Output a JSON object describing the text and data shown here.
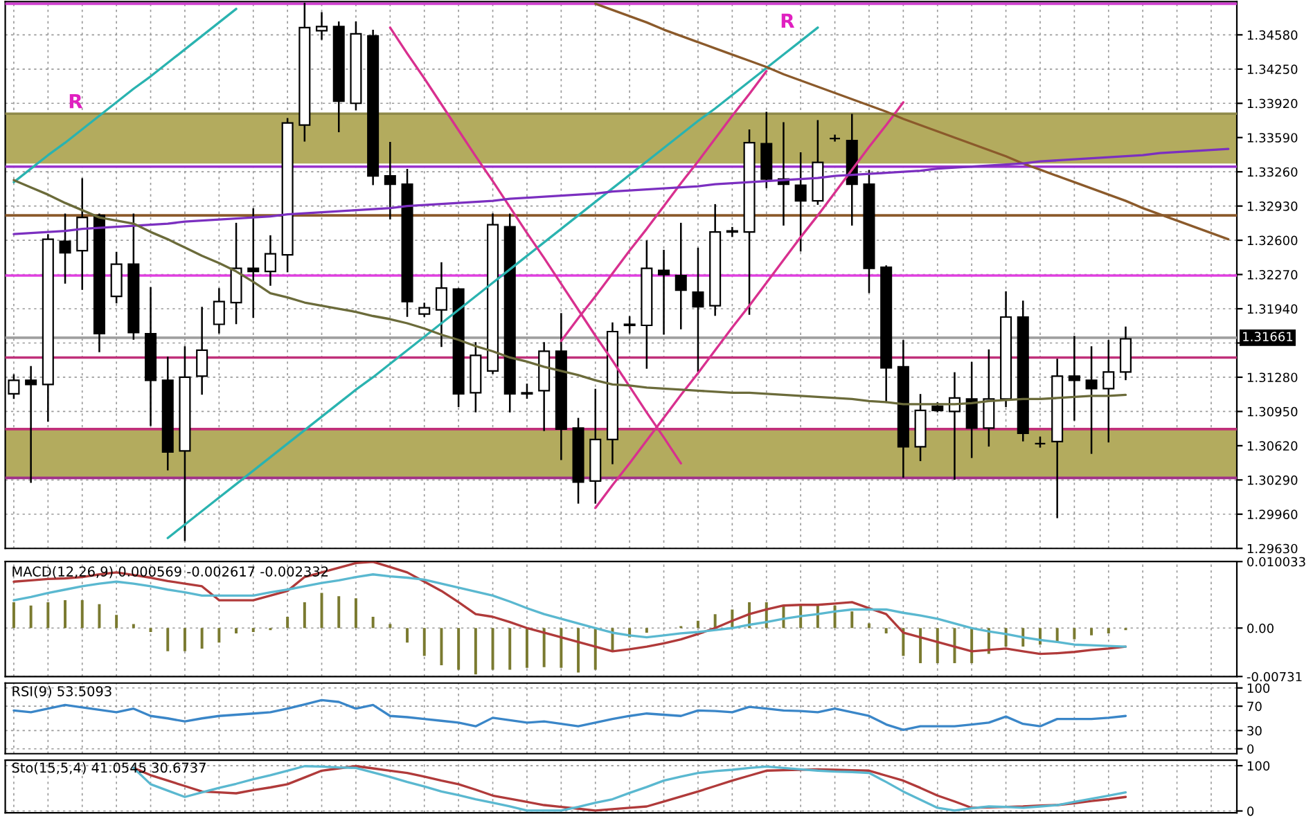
{
  "chart_data": [
    {
      "type": "candlestick",
      "categories": [
        null,
        null,
        null,
        null,
        null,
        null,
        null,
        null,
        null,
        null,
        null,
        null,
        null,
        null,
        null,
        null,
        null,
        null,
        null,
        null,
        null,
        null,
        null,
        null,
        null,
        null,
        null,
        null,
        null,
        null,
        null,
        null,
        null,
        null,
        null,
        null,
        null,
        null,
        null,
        null,
        null,
        null,
        null,
        null,
        null,
        null,
        null,
        null,
        null,
        null,
        null,
        null,
        null,
        null,
        null,
        null,
        null,
        null,
        null,
        null,
        null,
        null,
        null,
        null,
        null,
        null,
        null,
        null,
        null,
        null,
        null,
        null
      ],
      "ohlc": [
        [
          1.3112,
          1.313,
          1.3108,
          1.3125
        ],
        [
          1.3125,
          1.3138,
          1.3027,
          1.3121
        ],
        [
          1.3121,
          1.3265,
          1.3086,
          1.3261
        ],
        [
          1.3259,
          1.3285,
          1.3219,
          1.3248
        ],
        [
          1.325,
          1.3319,
          1.3213,
          1.3282
        ],
        [
          1.3284,
          1.3285,
          1.3153,
          1.317
        ],
        [
          1.3206,
          1.3248,
          1.32,
          1.3237
        ],
        [
          1.3237,
          1.3285,
          1.3165,
          1.3171
        ],
        [
          1.317,
          1.3214,
          1.3082,
          1.3125
        ],
        [
          1.3125,
          1.3147,
          1.3039,
          1.3056
        ],
        [
          1.3057,
          1.3157,
          1.2971,
          1.3128
        ],
        [
          1.3129,
          1.3195,
          1.3112,
          1.3154
        ],
        [
          1.3179,
          1.3213,
          1.3171,
          1.3201
        ],
        [
          1.32,
          1.3276,
          1.318,
          1.3233
        ],
        [
          1.3233,
          1.329,
          1.3186,
          1.323
        ],
        [
          1.323,
          1.3264,
          1.3217,
          1.3247
        ],
        [
          1.3246,
          1.3377,
          1.323,
          1.3373
        ],
        [
          1.3371,
          1.3488,
          1.3356,
          1.3465
        ],
        [
          1.3462,
          1.3479,
          1.3454,
          1.3466
        ],
        [
          1.3466,
          1.347,
          1.3365,
          1.3394
        ],
        [
          1.3392,
          1.347,
          1.3386,
          1.3459
        ],
        [
          1.3457,
          1.3462,
          1.3314,
          1.3322
        ],
        [
          1.3322,
          1.3354,
          1.3281,
          1.3314
        ],
        [
          1.3314,
          1.3328,
          1.3187,
          1.3201
        ],
        [
          1.3189,
          1.3199,
          1.3187,
          1.3195
        ],
        [
          1.3193,
          1.3238,
          1.3158,
          1.3214
        ],
        [
          1.3213,
          1.3213,
          1.31,
          1.3112
        ],
        [
          1.3113,
          1.3161,
          1.3095,
          1.3149
        ],
        [
          1.3134,
          1.3285,
          1.3132,
          1.3275
        ],
        [
          1.3273,
          1.3285,
          1.3095,
          1.3112
        ],
        [
          1.3113,
          1.3121,
          1.3108,
          1.3112
        ],
        [
          1.3115,
          1.3161,
          1.3077,
          1.3153
        ],
        [
          1.3153,
          1.3189,
          1.3049,
          1.3078
        ],
        [
          1.3079,
          1.3088,
          1.3007,
          1.3027
        ],
        [
          1.3028,
          1.3116,
          1.3007,
          1.3068
        ],
        [
          1.3068,
          1.318,
          1.3045,
          1.3172
        ],
        [
          1.3178,
          1.3186,
          1.3171,
          1.3179
        ],
        [
          1.3178,
          1.3259,
          1.3137,
          1.3233
        ],
        [
          1.3231,
          1.325,
          1.317,
          1.3227
        ],
        [
          1.3226,
          1.3276,
          1.3175,
          1.3212
        ],
        [
          1.321,
          1.3252,
          1.3134,
          1.3196
        ],
        [
          1.3197,
          1.3294,
          1.3188,
          1.3268
        ],
        [
          1.3268,
          1.3272,
          1.3264,
          1.3269
        ],
        [
          1.3268,
          1.3366,
          1.3189,
          1.3354
        ],
        [
          1.3353,
          1.3383,
          1.3311,
          1.3319
        ],
        [
          1.3319,
          1.3373,
          1.3275,
          1.3314
        ],
        [
          1.3313,
          1.3344,
          1.325,
          1.3298
        ],
        [
          1.3298,
          1.3375,
          1.3295,
          1.3335
        ],
        [
          1.3358,
          1.3361,
          1.3356,
          1.3358
        ],
        [
          1.3356,
          1.3381,
          1.3275,
          1.3314
        ],
        [
          1.3314,
          1.3327,
          1.321,
          1.3233
        ],
        [
          1.3234,
          1.3235,
          1.3104,
          1.3137
        ],
        [
          1.3138,
          1.3163,
          1.3032,
          1.3061
        ],
        [
          1.3061,
          1.3111,
          1.3048,
          1.3096
        ],
        [
          1.31,
          1.3103,
          1.3095,
          1.3096
        ],
        [
          1.3095,
          1.3132,
          1.303,
          1.3108
        ],
        [
          1.3107,
          1.3142,
          1.3051,
          1.3079
        ],
        [
          1.3079,
          1.3154,
          1.3062,
          1.3107
        ],
        [
          1.3107,
          1.321,
          1.31,
          1.3186
        ],
        [
          1.3186,
          1.3201,
          1.3067,
          1.3074
        ],
        [
          1.3064,
          1.307,
          1.3061,
          1.3064
        ],
        [
          1.3066,
          1.3145,
          1.2993,
          1.3129
        ],
        [
          1.3129,
          1.3167,
          1.3087,
          1.3125
        ],
        [
          1.3125,
          1.3157,
          1.3055,
          1.3117
        ],
        [
          1.3117,
          1.3163,
          1.3066,
          1.3133
        ],
        [
          1.3133,
          1.3176,
          1.3126,
          1.3165
        ],
        null,
        null,
        null,
        null,
        null,
        null
      ],
      "series": [
        {
          "type": "line",
          "color": "#2ab3b0",
          "values": [
            1.3316,
            1.3329,
            1.3342,
            1.3354,
            1.3367,
            1.338,
            1.3393,
            1.3406,
            1.3418,
            1.3431,
            1.3444,
            1.3457,
            1.347,
            1.3483,
            null,
            null,
            null,
            null,
            null,
            null,
            null,
            null,
            null,
            null,
            null,
            null,
            null,
            null,
            null,
            null,
            null,
            null,
            null,
            null,
            null,
            null,
            null,
            null,
            null,
            null,
            null,
            null,
            null,
            null,
            null,
            null,
            null,
            null,
            null,
            null,
            null,
            null,
            null,
            null,
            null,
            null,
            null,
            null,
            null,
            null,
            null,
            null,
            null,
            null,
            null,
            null,
            null,
            null,
            null,
            null,
            null,
            null
          ]
        },
        {
          "type": "line",
          "color": "#2ab3b0",
          "values": [
            null,
            null,
            null,
            null,
            null,
            null,
            null,
            null,
            null,
            1.2973,
            1.2986,
            1.2999,
            1.3012,
            1.3025,
            1.3038,
            1.3051,
            1.3064,
            1.3077,
            1.309,
            1.3103,
            1.3116,
            1.3128,
            1.3141,
            1.3154,
            1.3167,
            1.318,
            1.3193,
            1.3206,
            1.3219,
            1.3232,
            1.3245,
            1.3258,
            1.3271,
            1.3284,
            1.3297,
            1.331,
            1.3323,
            1.3336,
            1.3349,
            1.3362,
            1.3375,
            1.3387,
            1.34,
            1.3413,
            1.3426,
            1.3439,
            1.3452,
            1.3465,
            null,
            null,
            null,
            null,
            null,
            null,
            null,
            null,
            null,
            null,
            null,
            null,
            null,
            null,
            null,
            null,
            null,
            null,
            null,
            null,
            null,
            null,
            null,
            null
          ]
        },
        {
          "type": "line",
          "color": "#d8308f",
          "values": [
            null,
            null,
            null,
            null,
            null,
            null,
            null,
            null,
            null,
            null,
            null,
            null,
            null,
            null,
            null,
            null,
            null,
            null,
            null,
            null,
            null,
            null,
            1.3465,
            1.344,
            1.3416,
            1.3391,
            1.3366,
            1.3341,
            1.3317,
            1.3292,
            1.3267,
            1.3243,
            1.3218,
            1.3193,
            1.3168,
            1.3144,
            1.3119,
            1.3094,
            1.307,
            1.3045,
            null,
            null,
            null,
            null,
            null,
            null,
            null,
            null,
            null,
            null,
            null,
            null,
            null,
            null,
            null,
            null,
            null,
            null,
            null,
            null,
            null,
            null,
            null,
            null,
            null,
            null,
            null,
            null,
            null,
            null,
            null,
            null
          ]
        },
        {
          "type": "line",
          "color": "#d8308f",
          "values": [
            null,
            null,
            null,
            null,
            null,
            null,
            null,
            null,
            null,
            null,
            null,
            null,
            null,
            null,
            null,
            null,
            null,
            null,
            null,
            null,
            null,
            null,
            null,
            null,
            null,
            null,
            null,
            null,
            null,
            null,
            null,
            null,
            1.3163,
            1.3185,
            1.3206,
            1.3228,
            1.325,
            1.3271,
            1.3293,
            1.3315,
            1.3336,
            1.3358,
            1.338,
            1.3401,
            1.3423,
            null,
            null,
            null,
            null,
            null,
            null,
            null,
            null,
            null,
            null,
            null,
            null,
            null,
            null,
            null,
            null,
            null,
            null,
            null,
            null,
            null,
            null,
            null,
            null,
            null,
            null,
            null
          ]
        },
        {
          "type": "line",
          "color": "#d8308f",
          "values": [
            null,
            null,
            null,
            null,
            null,
            null,
            null,
            null,
            null,
            null,
            null,
            null,
            null,
            null,
            null,
            null,
            null,
            null,
            null,
            null,
            null,
            null,
            null,
            null,
            null,
            null,
            null,
            null,
            null,
            null,
            null,
            null,
            null,
            null,
            1.3002,
            1.3024,
            1.3045,
            1.3067,
            1.3089,
            1.3111,
            1.3132,
            1.3154,
            1.3176,
            1.3197,
            1.3219,
            1.3241,
            1.3263,
            1.3284,
            1.3306,
            1.3328,
            1.335,
            1.3371,
            1.3393,
            null,
            null,
            null,
            null,
            null,
            null,
            null,
            null,
            null,
            null,
            null,
            null,
            null,
            null,
            null,
            null,
            null,
            null,
            null
          ]
        },
        {
          "type": "line",
          "color": "#8b5a2b",
          "values": [
            null,
            null,
            null,
            null,
            null,
            null,
            null,
            null,
            null,
            null,
            null,
            null,
            null,
            null,
            null,
            null,
            null,
            null,
            null,
            null,
            null,
            null,
            null,
            null,
            null,
            null,
            null,
            null,
            null,
            null,
            null,
            null,
            null,
            null,
            1.3488,
            1.3482,
            1.3476,
            1.347,
            1.3463,
            1.3457,
            1.3451,
            1.3445,
            1.3439,
            1.3433,
            1.3427,
            1.342,
            1.3414,
            1.3408,
            1.3402,
            1.3396,
            1.339,
            1.3384,
            1.3377,
            1.3371,
            1.3365,
            1.3359,
            1.3353,
            1.3347,
            1.3341,
            1.3334,
            1.3328,
            1.3322,
            1.3316,
            1.331,
            1.3304,
            1.3298,
            1.3291,
            1.3285,
            1.3279,
            1.3273,
            1.3267,
            1.3261
          ]
        },
        {
          "type": "line",
          "color": "#7b2fc0",
          "values": [
            1.3266,
            1.3267,
            1.3268,
            1.3269,
            1.3271,
            1.3272,
            1.3273,
            1.3274,
            1.3275,
            1.3276,
            1.3278,
            1.3279,
            1.328,
            1.3281,
            1.3282,
            1.3283,
            1.3285,
            1.3286,
            1.3287,
            1.3288,
            1.3289,
            1.329,
            1.3291,
            1.3293,
            1.3294,
            1.3295,
            1.3296,
            1.3297,
            1.3298,
            1.33,
            1.3301,
            1.3302,
            1.3303,
            1.3304,
            1.3305,
            1.3307,
            1.3308,
            1.3309,
            1.331,
            1.3311,
            1.3312,
            1.3314,
            1.3315,
            1.3316,
            1.3317,
            1.3318,
            1.3319,
            1.332,
            1.3322,
            1.3323,
            1.3324,
            1.3325,
            1.3326,
            1.3327,
            1.3329,
            1.333,
            1.3331,
            1.3332,
            1.3333,
            1.3334,
            1.3336,
            1.3337,
            1.3338,
            1.3339,
            1.334,
            1.3341,
            1.3342,
            1.3344,
            1.3345,
            1.3346,
            1.3347,
            1.3348
          ]
        },
        {
          "type": "line",
          "color": "#6b6b3a",
          "values": [
            1.3318,
            1.3311,
            1.3304,
            1.3296,
            1.3289,
            1.3282,
            1.3279,
            1.3276,
            1.3268,
            1.3261,
            1.3253,
            1.3245,
            1.3238,
            1.323,
            1.322,
            1.3209,
            1.3205,
            1.32,
            1.3197,
            1.3194,
            1.3191,
            1.3187,
            1.3184,
            1.318,
            1.3175,
            1.3169,
            1.3164,
            1.3158,
            1.3153,
            1.3147,
            1.3143,
            1.3138,
            1.3134,
            1.313,
            1.3125,
            1.3121,
            1.312,
            1.3118,
            1.3117,
            1.3116,
            1.3115,
            1.3114,
            1.3113,
            1.3113,
            1.3112,
            1.3111,
            1.311,
            1.3109,
            1.3108,
            1.3107,
            1.3105,
            1.3104,
            1.3102,
            1.3102,
            1.3102,
            1.3102,
            1.3103,
            1.3105,
            1.3106,
            1.3107,
            1.3107,
            1.3108,
            1.3109,
            1.311,
            1.311,
            1.3111,
            null,
            null,
            null,
            null,
            null,
            null
          ]
        }
      ],
      "bands": [
        {
          "axis": "y",
          "from": 1.3334,
          "to": 1.3381,
          "color": "#b3ab5e"
        },
        {
          "axis": "y",
          "from": 1.3031,
          "to": 1.3078,
          "color": "#b3ab5e"
        }
      ],
      "ref_lines": [
        {
          "axis": "y",
          "value": 1.3488,
          "color": "#d040d0"
        },
        {
          "axis": "y",
          "value": 1.3382,
          "color": "#8f8a4a"
        },
        {
          "axis": "y",
          "value": 1.3331,
          "color": "#9933cc"
        },
        {
          "axis": "y",
          "value": 1.3284,
          "color": "#8b5a2b"
        },
        {
          "axis": "y",
          "value": 1.3226,
          "color": "#e040e0"
        },
        {
          "axis": "y",
          "value": 1.31661,
          "color": "#a0a0a0",
          "label": "1.31661"
        },
        {
          "axis": "y",
          "value": 1.3147,
          "color": "#c0307a"
        },
        {
          "axis": "y",
          "value": 1.3078,
          "color": "#c0307a"
        },
        {
          "axis": "y",
          "value": 1.3031,
          "color": "#a0308a"
        }
      ],
      "annotations": [
        "R",
        "R"
      ],
      "ylim": [
        1.2963,
        1.349
      ],
      "yticks": [
        {
          "value": 1.3458,
          "label": "1.34580"
        },
        {
          "value": 1.3425,
          "label": "1.34250"
        },
        {
          "value": 1.3392,
          "label": "1.33920"
        },
        {
          "value": 1.3359,
          "label": "1.33590"
        },
        {
          "value": 1.3326,
          "label": "1.33260"
        },
        {
          "value": 1.3293,
          "label": "1.32930"
        },
        {
          "value": 1.326,
          "label": "1.32600"
        },
        {
          "value": 1.3227,
          "label": "1.32270"
        },
        {
          "value": 1.3194,
          "label": "1.31940"
        },
        {
          "value": 1.3161,
          "label": null
        },
        {
          "value": 1.3128,
          "label": "1.31280"
        },
        {
          "value": 1.3095,
          "label": "1.30950"
        },
        {
          "value": 1.3062,
          "label": "1.30620"
        },
        {
          "value": 1.3029,
          "label": "1.30290"
        },
        {
          "value": 1.2996,
          "label": "1.29960"
        },
        {
          "value": 1.2963,
          "label": "1.29630"
        }
      ],
      "grid": true,
      "tick_labels": "y"
    },
    {
      "type": "bar",
      "title": "MACD(12,26,9) 0.000569 -0.002617 -0.002332",
      "categories": [
        null,
        null,
        null,
        null,
        null,
        null,
        null,
        null,
        null,
        null,
        null,
        null,
        null,
        null,
        null,
        null,
        null,
        null,
        null,
        null,
        null,
        null,
        null,
        null,
        null,
        null,
        null,
        null,
        null,
        null,
        null,
        null,
        null,
        null,
        null,
        null,
        null,
        null,
        null,
        null,
        null,
        null,
        null,
        null,
        null,
        null,
        null,
        null,
        null,
        null,
        null,
        null,
        null,
        null,
        null,
        null,
        null,
        null,
        null,
        null,
        null,
        null,
        null,
        null,
        null,
        null,
        null,
        null,
        null,
        null,
        null,
        null
      ],
      "series": [
        {
          "type": "bar",
          "color": "#7a7a30",
          "values": [
            0.0039,
            0.0034,
            0.0039,
            0.0042,
            0.0042,
            0.0036,
            0.002,
            0.0006,
            -0.0006,
            -0.0035,
            -0.0035,
            -0.0031,
            -0.0022,
            -0.0008,
            -0.0006,
            -0.0003,
            0.0017,
            0.0039,
            0.0053,
            0.0048,
            0.0045,
            0.0017,
            0.0006,
            -0.0022,
            -0.0042,
            -0.0056,
            -0.0063,
            -0.007,
            -0.0063,
            -0.0063,
            -0.006,
            -0.0059,
            -0.006,
            -0.0067,
            -0.0063,
            -0.0035,
            -0.0014,
            -0.0007,
            0.0,
            0.0003,
            0.0011,
            0.0021,
            0.0028,
            0.0039,
            0.0039,
            0.0034,
            0.0034,
            0.0034,
            0.0034,
            0.0025,
            0.0007,
            -0.0008,
            -0.0042,
            -0.0053,
            -0.0053,
            -0.0053,
            -0.0053,
            -0.0039,
            -0.0028,
            -0.0028,
            -0.0025,
            -0.0022,
            -0.0017,
            -0.0011,
            -0.0008,
            -0.0003,
            null,
            null,
            null,
            null,
            null,
            null
          ]
        },
        {
          "type": "line",
          "color": "#b03a3a",
          "values": [
            0.007,
            0.0072,
            0.0074,
            0.0075,
            0.0077,
            0.0081,
            0.0084,
            0.008,
            0.0076,
            0.0071,
            0.0067,
            0.0063,
            0.0042,
            0.0042,
            0.0042,
            0.0049,
            0.0056,
            0.0077,
            0.0084,
            0.0091,
            0.0098,
            0.01,
            0.0092,
            0.0084,
            0.007,
            0.0056,
            0.0039,
            0.0021,
            0.0017,
            0.0009,
            0.0,
            -0.0007,
            -0.0014,
            -0.0021,
            -0.0028,
            -0.0035,
            -0.0032,
            -0.0028,
            -0.0023,
            -0.0017,
            -0.0009,
            0.0,
            0.0011,
            0.0021,
            0.0028,
            0.0034,
            0.0035,
            0.0035,
            0.0037,
            0.0039,
            0.003,
            0.0021,
            -0.0007,
            -0.0014,
            -0.0021,
            -0.0028,
            -0.0035,
            -0.0033,
            -0.0031,
            -0.0035,
            -0.0039,
            -0.0038,
            -0.0036,
            -0.0033,
            -0.0031,
            -0.0028,
            null,
            null,
            null,
            null,
            null,
            null
          ]
        },
        {
          "type": "line",
          "color": "#5ab8d0",
          "values": [
            0.0042,
            0.0047,
            0.0053,
            0.0058,
            0.0063,
            0.0067,
            0.007,
            0.0067,
            0.0063,
            0.0058,
            0.0054,
            0.0049,
            0.0049,
            0.0049,
            0.0049,
            0.0054,
            0.0058,
            0.0063,
            0.0068,
            0.0072,
            0.0077,
            0.0081,
            0.0078,
            0.0076,
            0.0073,
            0.0067,
            0.0061,
            0.0055,
            0.0049,
            0.004,
            0.003,
            0.0021,
            0.0014,
            0.0007,
            0.0,
            -0.0007,
            -0.0011,
            -0.0014,
            -0.0011,
            -0.0008,
            -0.0006,
            -0.0003,
            0.0,
            0.0005,
            0.0009,
            0.0014,
            0.0018,
            0.0021,
            0.0025,
            0.0028,
            0.0028,
            0.0028,
            0.0023,
            0.0019,
            0.0014,
            0.0007,
            0.0,
            -0.0005,
            -0.0009,
            -0.0014,
            -0.0018,
            -0.0021,
            -0.0025,
            -0.0026,
            -0.0027,
            -0.0028,
            null,
            null,
            null,
            null,
            null,
            null
          ]
        }
      ],
      "ylim": [
        -0.00731,
        0.010033
      ],
      "yticks": [
        0.010033,
        {
          "value": 0,
          "label": "0.00"
        },
        -0.00731
      ],
      "grid": true,
      "tick_labels": "y"
    },
    {
      "type": "line",
      "title": "RSI(9) 53.5093",
      "categories": [
        null,
        null,
        null,
        null,
        null,
        null,
        null,
        null,
        null,
        null,
        null,
        null,
        null,
        null,
        null,
        null,
        null,
        null,
        null,
        null,
        null,
        null,
        null,
        null,
        null,
        null,
        null,
        null,
        null,
        null,
        null,
        null,
        null,
        null,
        null,
        null,
        null,
        null,
        null,
        null,
        null,
        null,
        null,
        null,
        null,
        null,
        null,
        null,
        null,
        null,
        null,
        null,
        null,
        null,
        null,
        null,
        null,
        null,
        null,
        null,
        null,
        null,
        null,
        null,
        null,
        null,
        null,
        null,
        null,
        null,
        null,
        null
      ],
      "series": [
        {
          "color": "#3a86c8",
          "values": [
            63,
            60,
            66,
            72,
            68,
            64,
            60,
            66,
            54,
            50,
            45,
            50,
            54,
            56,
            58,
            60,
            66,
            73,
            80,
            77,
            66,
            72,
            54,
            52,
            49,
            46,
            43,
            37,
            51,
            47,
            43,
            45,
            41,
            37,
            43,
            49,
            54,
            58,
            56,
            54,
            63,
            62,
            60,
            69,
            66,
            63,
            62,
            60,
            66,
            60,
            54,
            40,
            31,
            37,
            37,
            37,
            40,
            43,
            53,
            41,
            37,
            49,
            49,
            49,
            51,
            54,
            null,
            null,
            null,
            null,
            null,
            null
          ]
        }
      ],
      "ylim": [
        -8,
        108
      ],
      "yticks": [
        100,
        70,
        30,
        0
      ],
      "grid": true,
      "tick_labels": "y"
    },
    {
      "type": "line",
      "title": "Sto(15,5,4) 41.0545 30.6737",
      "categories": [
        null,
        null,
        null,
        null,
        null,
        null,
        null,
        null,
        null,
        null,
        null,
        null,
        null,
        null,
        null,
        null,
        null,
        null,
        null,
        null,
        null,
        null,
        null,
        null,
        null,
        null,
        null,
        null,
        null,
        null,
        null,
        null,
        null,
        null,
        null,
        null,
        null,
        null,
        null,
        null,
        null,
        null,
        null,
        null,
        null,
        null,
        null,
        null,
        null,
        null,
        null,
        null,
        null,
        null,
        null,
        null,
        null,
        null,
        null,
        null,
        null,
        null,
        null,
        null,
        null,
        null,
        null,
        null,
        null,
        null,
        null,
        null
      ],
      "series": [
        {
          "color": "#b03a3a",
          "values": [
            null,
            null,
            null,
            null,
            null,
            null,
            null,
            95,
            79,
            67,
            55,
            43,
            41,
            39,
            46,
            52,
            59,
            74,
            89,
            94,
            99,
            94,
            89,
            84,
            76,
            67,
            59,
            47,
            34,
            27,
            20,
            13,
            9,
            5,
            1,
            4,
            7,
            10,
            21,
            32,
            43,
            55,
            67,
            78,
            89,
            90,
            91,
            92,
            91,
            90,
            89,
            78,
            67,
            51,
            34,
            21,
            7,
            8,
            9,
            10,
            12,
            13,
            17,
            22,
            26,
            31,
            null,
            null,
            null,
            null,
            null,
            null
          ]
        },
        {
          "color": "#5ab8d0",
          "values": [
            null,
            null,
            null,
            null,
            null,
            null,
            null,
            95,
            59,
            45,
            31,
            41,
            51,
            60,
            70,
            79,
            89,
            99,
            98,
            96,
            95,
            85,
            75,
            64,
            54,
            43,
            35,
            26,
            18,
            10,
            1,
            1,
            1,
            9,
            18,
            26,
            40,
            53,
            67,
            76,
            84,
            88,
            91,
            95,
            98,
            95,
            92,
            89,
            87,
            86,
            84,
            64,
            43,
            25,
            7,
            1,
            6,
            10,
            9,
            7,
            10,
            13,
            20,
            27,
            34,
            41,
            null,
            null,
            null,
            null,
            null,
            null
          ]
        }
      ],
      "ylim": [
        -4,
        112
      ],
      "yticks": [
        100,
        0
      ],
      "grid": true,
      "tick_labels": "y"
    }
  ]
}
